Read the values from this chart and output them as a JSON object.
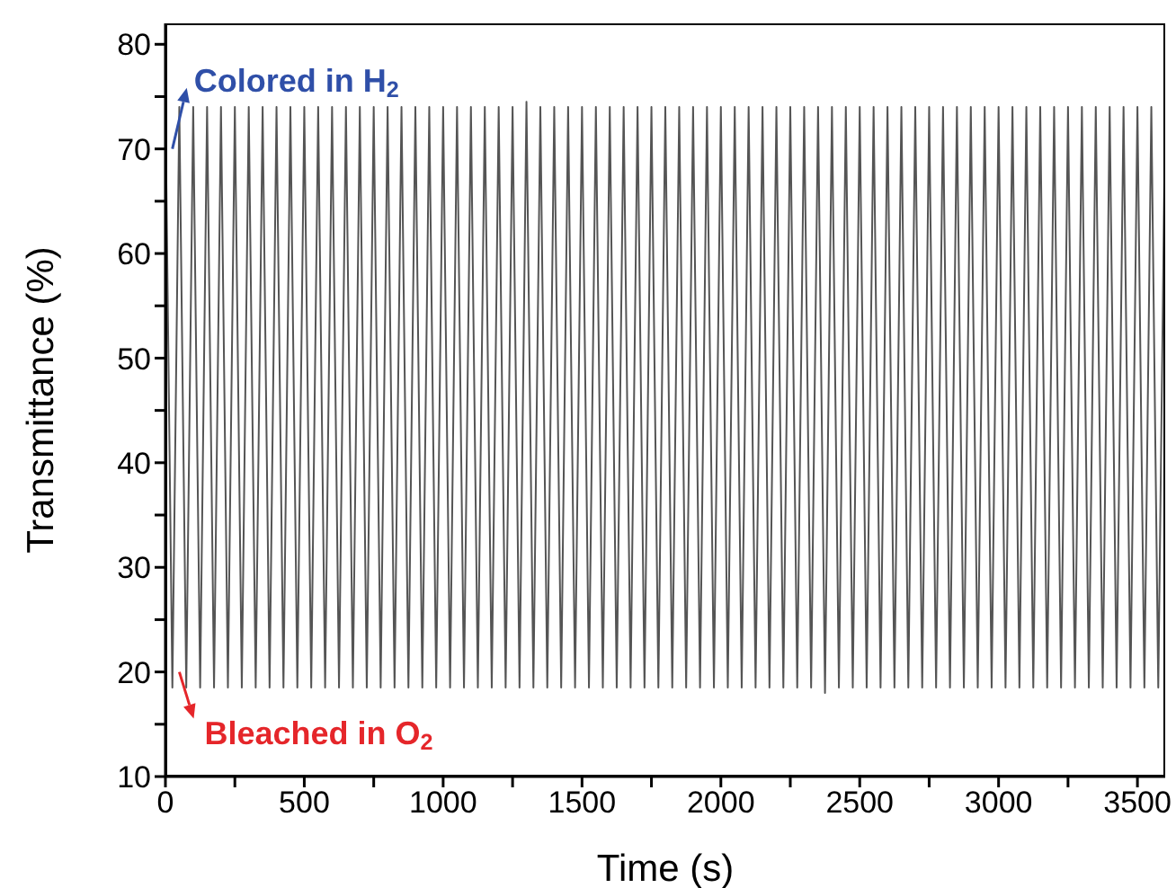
{
  "chart_data": {
    "type": "line",
    "xlabel": "Time (s)",
    "ylabel": "Transmittance (%)",
    "x": [
      0,
      25,
      50,
      75,
      100,
      125,
      150,
      175,
      200,
      225,
      250,
      275,
      300,
      325,
      350,
      375,
      400,
      425,
      450,
      475,
      500,
      525,
      550,
      575,
      600,
      625,
      650,
      675,
      700,
      725,
      750,
      775,
      800,
      825,
      850,
      875,
      900,
      925,
      950,
      975,
      1000,
      1025,
      1050,
      1075,
      1100,
      1125,
      1150,
      1175,
      1200,
      1225,
      1250,
      1275,
      1300,
      1325,
      1350,
      1375,
      1400,
      1425,
      1450,
      1475,
      1500,
      1525,
      1550,
      1575,
      1600,
      1625,
      1650,
      1675,
      1700,
      1725,
      1750,
      1775,
      1800,
      1825,
      1850,
      1875,
      1900,
      1925,
      1950,
      1975,
      2000,
      2025,
      2050,
      2075,
      2100,
      2125,
      2150,
      2175,
      2200,
      2225,
      2250,
      2275,
      2300,
      2325,
      2350,
      2375,
      2400,
      2425,
      2450,
      2475,
      2500,
      2525,
      2550,
      2575,
      2600,
      2625,
      2650,
      2675,
      2700,
      2725,
      2750,
      2775,
      2800,
      2825,
      2850,
      2875,
      2900,
      2925,
      2950,
      2975,
      3000,
      3025,
      3050,
      3075,
      3100,
      3125,
      3150,
      3175,
      3200,
      3225,
      3250,
      3275,
      3300,
      3325,
      3350,
      3375,
      3400,
      3425,
      3450,
      3475,
      3500,
      3525,
      3550,
      3575,
      3600
    ],
    "series": [
      {
        "color": "#555555",
        "values": [
          74,
          18.5,
          74,
          18.5,
          74,
          18.5,
          74,
          18.5,
          74,
          18.5,
          74,
          18.5,
          74,
          18.5,
          74,
          18.5,
          74,
          18.5,
          74,
          18.5,
          74,
          18.5,
          74,
          18.5,
          74,
          18.5,
          74,
          18.5,
          74,
          18.5,
          74,
          18.5,
          74,
          18.5,
          74,
          18.5,
          74,
          18.5,
          74,
          18.5,
          74,
          18.5,
          74,
          18.5,
          74,
          18.5,
          74,
          18.5,
          74,
          18.5,
          74,
          18.5,
          74.5,
          18.5,
          74,
          18.5,
          74,
          18.5,
          74,
          18.5,
          74,
          18.5,
          74,
          18.5,
          74,
          18.5,
          74,
          18.5,
          74,
          18.5,
          74,
          18.5,
          74,
          18.5,
          74,
          18.5,
          74,
          18.5,
          74,
          18.5,
          74,
          18.5,
          74,
          18.5,
          74,
          18.5,
          74,
          18.5,
          74,
          18.5,
          74,
          18.5,
          74,
          18.5,
          74,
          18,
          74,
          18.5,
          74,
          18.5,
          74,
          18.5,
          74,
          18.5,
          74,
          18.5,
          74,
          18.5,
          74,
          18.5,
          74,
          18.5,
          74,
          18.5,
          74,
          18.5,
          74,
          18.5,
          74,
          18.5,
          74,
          18.5,
          74,
          18.5,
          74,
          18.5,
          74,
          18.5,
          74,
          18.5,
          74,
          18.5,
          74,
          18.5,
          74,
          18.5,
          74,
          18.5,
          74,
          18.5,
          74,
          18.5,
          74,
          18.5,
          74
        ]
      }
    ],
    "xlim": [
      0,
      3600
    ],
    "xticks": [
      0,
      {
        "value": 250,
        "label": null
      },
      500,
      {
        "value": 750,
        "label": null
      },
      1000,
      {
        "value": 1250,
        "label": null
      },
      1500,
      {
        "value": 1750,
        "label": null
      },
      2000,
      {
        "value": 2250,
        "label": null
      },
      2500,
      {
        "value": 2750,
        "label": null
      },
      3000,
      {
        "value": 3250,
        "label": null
      },
      3500
    ],
    "ylim": [
      10,
      82
    ],
    "yticks": [
      10,
      {
        "value": 15,
        "label": null
      },
      20,
      {
        "value": 25,
        "label": null
      },
      30,
      {
        "value": 35,
        "label": null
      },
      40,
      {
        "value": 45,
        "label": null
      },
      50,
      {
        "value": 55,
        "label": null
      },
      60,
      {
        "value": 65,
        "label": null
      },
      70,
      {
        "value": 75,
        "label": null
      },
      80
    ],
    "grid": false,
    "legend": false,
    "marker": "none",
    "line_style": "solid",
    "annotations": [
      {
        "text": "Colored in H$_{2}$",
        "x": 25,
        "y": 70
      },
      {
        "text": "Bleached in O$_{2}$",
        "x": 50,
        "y": 20
      }
    ]
  }
}
